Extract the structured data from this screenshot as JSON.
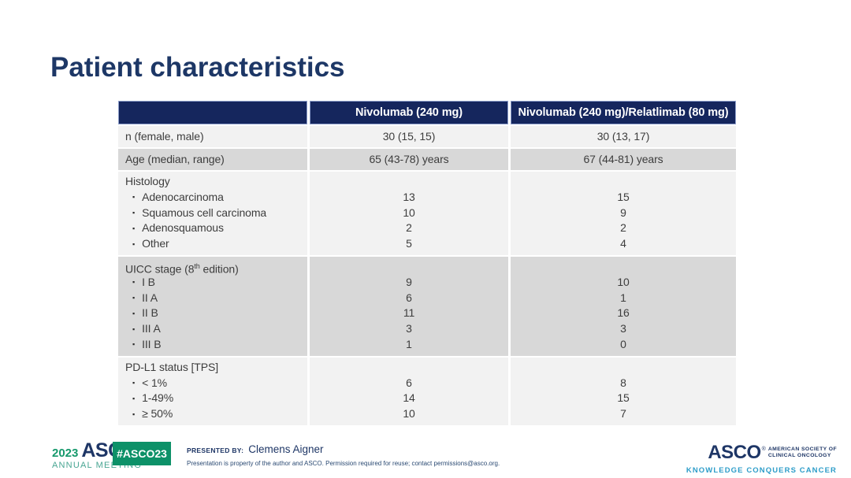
{
  "slide": {
    "title": "Patient characteristics"
  },
  "table": {
    "columns": [
      "",
      "Nivolumab (240 mg)",
      "Nivolumab (240 mg)/Relatlimab (80 mg)"
    ],
    "rows": [
      {
        "type": "simple",
        "shade": "light",
        "label": [
          "n (female, male)"
        ],
        "values": [
          "30 (15, 15)",
          "30 (13, 17)"
        ]
      },
      {
        "type": "simple",
        "shade": "dark",
        "label": [
          "Age (median, range)"
        ],
        "values": [
          "65 (43-78) years",
          "67 (44-81) years"
        ]
      },
      {
        "type": "section",
        "shade": "light",
        "label": [
          "Histology"
        ],
        "items": [
          {
            "label": "Adenocarcinoma",
            "values": [
              "13",
              "15"
            ]
          },
          {
            "label": "Squamous cell carcinoma",
            "values": [
              "10",
              "9"
            ]
          },
          {
            "label": "Adenosquamous",
            "values": [
              "2",
              "2"
            ]
          },
          {
            "label": "Other",
            "values": [
              "5",
              "4"
            ]
          }
        ]
      },
      {
        "type": "section",
        "shade": "dark",
        "label": [
          "UICC stage (8",
          {
            "sup": "th"
          },
          " edition)"
        ],
        "items": [
          {
            "label": "I B",
            "values": [
              "9",
              "10"
            ]
          },
          {
            "label": "II A",
            "values": [
              "6",
              "1"
            ]
          },
          {
            "label": "II B",
            "values": [
              "11",
              "16"
            ]
          },
          {
            "label": "III A",
            "values": [
              "3",
              "3"
            ]
          },
          {
            "label": "III B",
            "values": [
              "1",
              "0"
            ]
          }
        ]
      },
      {
        "type": "section",
        "shade": "light",
        "label": [
          "PD-L1 status [TPS]"
        ],
        "items": [
          {
            "label": "< 1%",
            "values": [
              "6",
              "8"
            ]
          },
          {
            "label": "1-49%",
            "values": [
              "14",
              "15"
            ]
          },
          {
            "label": "≥ 50%",
            "values": [
              "10",
              "7"
            ]
          }
        ]
      }
    ]
  },
  "footer": {
    "meeting_logo": {
      "year": "2023",
      "org": "ASCO",
      "reg": "®",
      "subtitle": "ANNUAL MEETING"
    },
    "hashtag": "#ASCO23",
    "presented_by_label": "PRESENTED BY:",
    "presenter": "Clemens Aigner",
    "disclaimer": "Presentation is property of the author and ASCO. Permission required for reuse; contact permissions@asco.org.",
    "asco_logo": {
      "name": "ASCO",
      "reg": "®",
      "society_line1": "AMERICAN SOCIETY OF",
      "society_line2": "CLINICAL ONCOLOGY",
      "tagline": "KNOWLEDGE CONQUERS CANCER"
    }
  },
  "colors": {
    "header_navy": "#15265d",
    "title_navy": "#1d3766",
    "row_light": "#f2f2f2",
    "row_dark": "#d8d8d8",
    "badge_green": "#0d9168",
    "meeting_green": "#16996c",
    "meeting_teal": "#48a592",
    "tagline_blue": "#2d9dc9"
  },
  "icons": {
    "bullet": "▪"
  }
}
